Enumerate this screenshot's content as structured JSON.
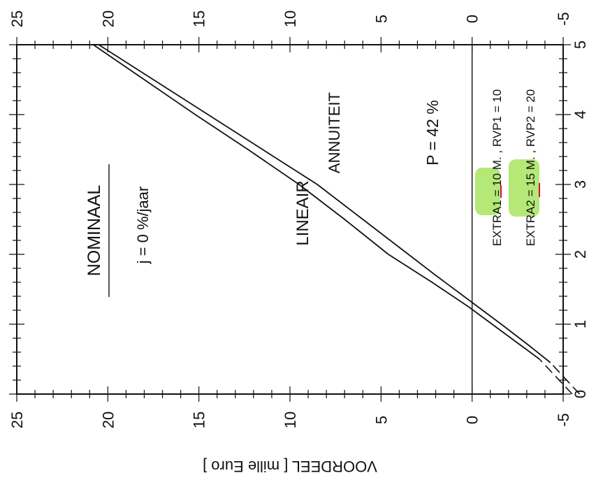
{
  "chart_data": {
    "type": "line",
    "orientation": "rotated-90",
    "ylabel": "VOORDEEL  [ mille Euro ]",
    "ylim": [
      -5,
      25
    ],
    "xlim": [
      0,
      5
    ],
    "y_ticks": [
      "25",
      "20",
      "15",
      "10",
      "5",
      "0",
      "-5"
    ],
    "x_ticks": [
      "0",
      "1",
      "2",
      "3",
      "4",
      "5"
    ],
    "series": [
      {
        "name": "LINEAIR",
        "x": [
          0.45,
          0.7,
          1.0,
          1.35,
          1.7,
          2.1,
          2.5,
          3.0,
          3.5,
          4.0,
          4.5,
          5.0
        ],
        "y": [
          -4.3,
          -3.1,
          -1.6,
          0.2,
          2.0,
          4.0,
          6.0,
          8.5,
          11.5,
          14.5,
          17.5,
          20.5
        ]
      },
      {
        "name": "ANNUITEIT",
        "x": [
          0.5,
          0.75,
          1.0,
          1.25,
          1.6,
          2.0,
          2.5,
          3.0,
          3.5,
          4.0,
          4.5,
          5.0
        ],
        "y": [
          -3.7,
          -2.4,
          -1.1,
          0.2,
          2.2,
          4.6,
          7.0,
          9.5,
          12.3,
          15.2,
          18.0,
          20.8
        ]
      }
    ],
    "dashed_extensions": [
      {
        "x": [
          0.0,
          0.45
        ],
        "y": [
          -5.9,
          -4.3
        ]
      },
      {
        "x": [
          0.0,
          0.5
        ],
        "y": [
          -5.5,
          -3.7
        ]
      }
    ],
    "reference_line": {
      "y": 0
    },
    "annotations": {
      "title": "NOMINAAL",
      "rate": "j  =  0  %/jaar",
      "label_lineair": "LINEAIR",
      "label_annuiteit": "ANNUITEIT",
      "p_label": "P  =  42  %",
      "extra1_line": "EXTRA1  =  10  M. ,  RVP1  =  10",
      "extra2_line": "EXTRA2  =  15  M. ,  RVP2  =  20"
    },
    "highlight_color": "#9be04a",
    "underline_color": "#d0103a"
  }
}
